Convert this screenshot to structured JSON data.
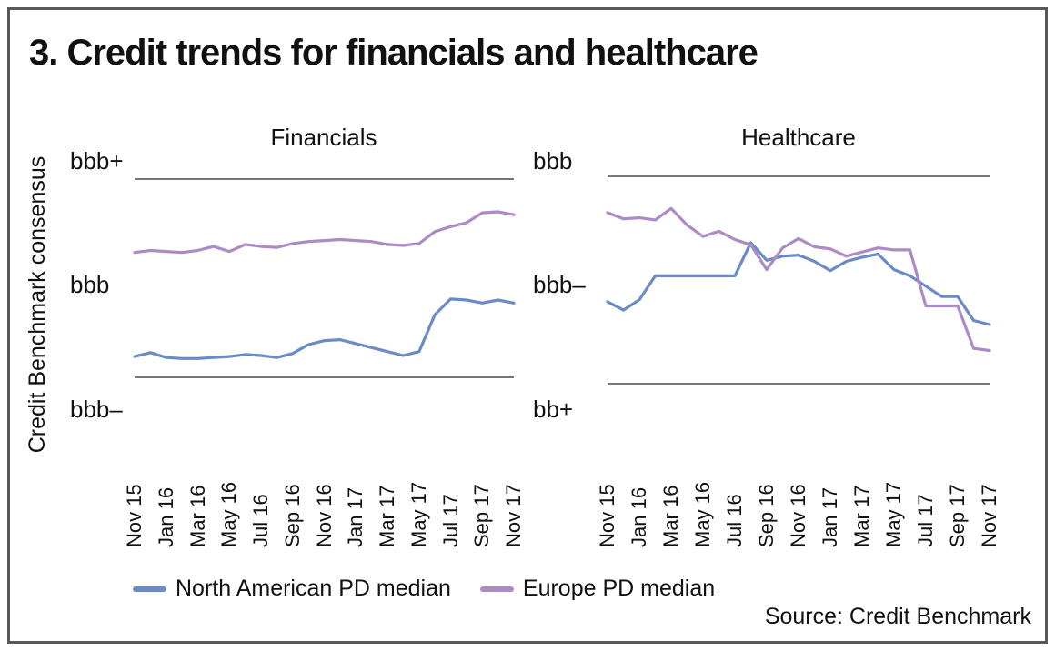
{
  "figure": {
    "title": "3. Credit trends for financials and healthcare",
    "y_axis_title": "Credit Benchmark consensus",
    "source": "Source: Credit Benchmark",
    "legend": [
      {
        "label": "North American PD median",
        "color": "#6a8bc3"
      },
      {
        "label": "Europe PD median",
        "color": "#ac8bc4"
      }
    ]
  },
  "colors": {
    "north_american_line": "#6a8bc3",
    "europe_line": "#ac8bc4",
    "gridline": "#757575",
    "frame_border": "#58595b",
    "text": "#111111"
  },
  "chart_data": [
    {
      "type": "line",
      "title": "Financials",
      "y_tick_labels": [
        "bbb+",
        "bbb",
        "bbb–"
      ],
      "y_min": 0,
      "y_max": 2,
      "y_scale_note": "rating notches: 0 = bbb–, 1 = bbb, 2 = bbb+",
      "x_tick_labels": [
        "Nov 15",
        "Jan 16",
        "Mar 16",
        "May 16",
        "Jul 16",
        "Sep 16",
        "Nov 16",
        "Jan 17",
        "Mar 17",
        "May 17",
        "Jul 17",
        "Sep 17",
        "Nov 17"
      ],
      "x_months": [
        "Nov 15",
        "Dec 15",
        "Jan 16",
        "Feb 16",
        "Mar 16",
        "Apr 16",
        "May 16",
        "Jun 16",
        "Jul 16",
        "Aug 16",
        "Sep 16",
        "Oct 16",
        "Nov 16",
        "Dec 16",
        "Jan 17",
        "Feb 17",
        "Mar 17",
        "Apr 17",
        "May 17",
        "Jun 17",
        "Jul 17",
        "Aug 17",
        "Sep 17",
        "Oct 17",
        "Nov 17"
      ],
      "series": [
        {
          "name": "North American PD median",
          "color": "#6a8bc3",
          "values": [
            0.21,
            0.25,
            0.2,
            0.19,
            0.19,
            0.2,
            0.21,
            0.23,
            0.22,
            0.2,
            0.24,
            0.33,
            0.37,
            0.38,
            0.34,
            0.3,
            0.26,
            0.22,
            0.26,
            0.63,
            0.79,
            0.78,
            0.75,
            0.78,
            0.75
          ]
        },
        {
          "name": "Europe PD median",
          "color": "#ac8bc4",
          "values": [
            1.26,
            1.28,
            1.27,
            1.26,
            1.28,
            1.32,
            1.27,
            1.34,
            1.32,
            1.31,
            1.35,
            1.37,
            1.38,
            1.39,
            1.38,
            1.37,
            1.34,
            1.33,
            1.35,
            1.47,
            1.52,
            1.56,
            1.66,
            1.67,
            1.64
          ]
        }
      ]
    },
    {
      "type": "line",
      "title": "Healthcare",
      "y_tick_labels": [
        "bbb",
        "bbb–",
        "bb+"
      ],
      "y_min": 0,
      "y_max": 2,
      "y_scale_note": "rating notches: 0 = bb+, 1 = bbb–, 2 = bbb",
      "x_tick_labels": [
        "Nov 15",
        "Jan 16",
        "Mar 16",
        "May 16",
        "Jul 16",
        "Sep 16",
        "Nov 16",
        "Jan 17",
        "Mar 17",
        "May 17",
        "Jul 17",
        "Sep 17",
        "Nov 17"
      ],
      "x_months": [
        "Nov 15",
        "Dec 15",
        "Jan 16",
        "Feb 16",
        "Mar 16",
        "Apr 16",
        "May 16",
        "Jun 16",
        "Jul 16",
        "Aug 16",
        "Sep 16",
        "Oct 16",
        "Nov 16",
        "Dec 16",
        "Jan 17",
        "Feb 17",
        "Mar 17",
        "Apr 17",
        "May 17",
        "Jun 17",
        "Jul 17",
        "Aug 17",
        "Sep 17",
        "Oct 17",
        "Nov 17"
      ],
      "series": [
        {
          "name": "North American PD median",
          "color": "#6a8bc3",
          "values": [
            0.79,
            0.71,
            0.81,
            1.04,
            1.04,
            1.04,
            1.04,
            1.04,
            1.04,
            1.36,
            1.19,
            1.23,
            1.24,
            1.18,
            1.09,
            1.18,
            1.22,
            1.25,
            1.1,
            1.04,
            0.94,
            0.84,
            0.84,
            0.61,
            0.57
          ]
        },
        {
          "name": "Europe PD median",
          "color": "#ac8bc4",
          "values": [
            1.65,
            1.59,
            1.6,
            1.58,
            1.69,
            1.53,
            1.42,
            1.47,
            1.39,
            1.34,
            1.1,
            1.31,
            1.4,
            1.32,
            1.3,
            1.23,
            1.27,
            1.31,
            1.29,
            1.29,
            0.75,
            0.75,
            0.75,
            0.34,
            0.32
          ]
        }
      ]
    }
  ]
}
